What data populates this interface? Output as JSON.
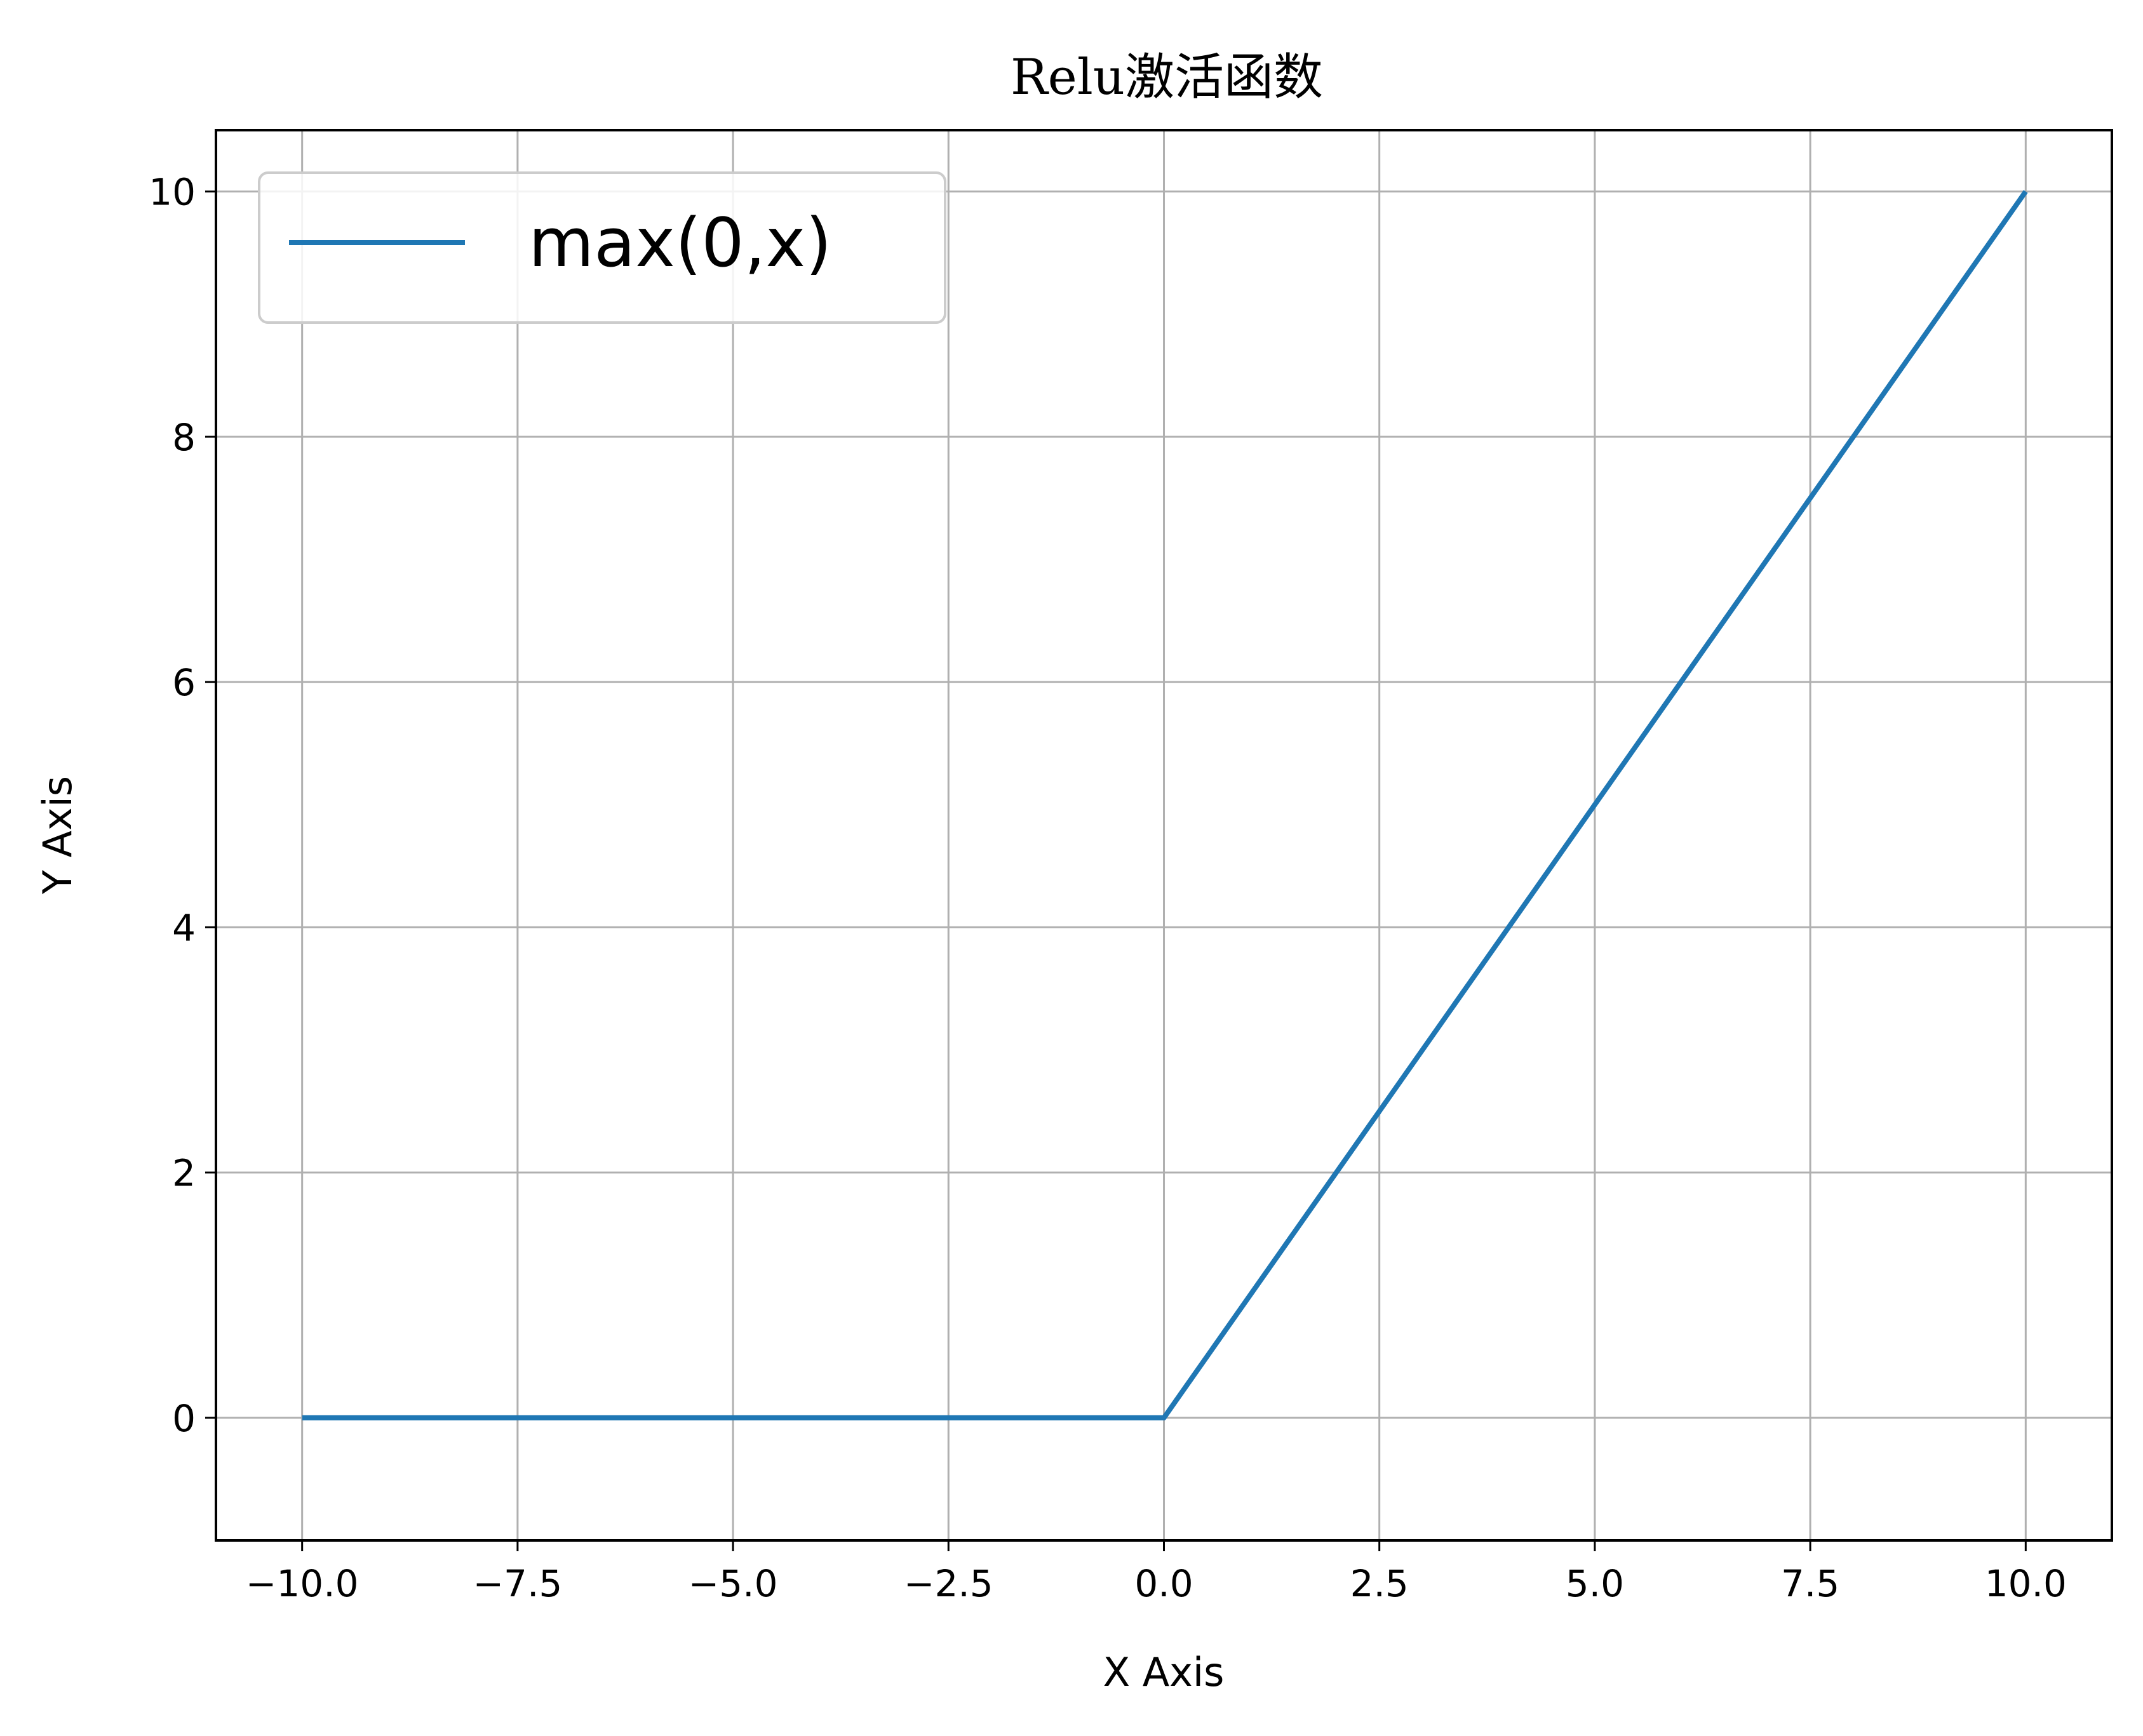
{
  "chart_data": {
    "type": "line",
    "title": "Relu激活函数",
    "xlabel": "X Axis",
    "ylabel": "Y Axis",
    "xlim": [
      -11,
      11
    ],
    "ylim": [
      -1,
      10.5
    ],
    "xticks": [
      -10.0,
      -7.5,
      -5.0,
      -2.5,
      0.0,
      2.5,
      5.0,
      7.5,
      10.0
    ],
    "xtick_labels": [
      "−10.0",
      "−7.5",
      "−5.0",
      "−2.5",
      "0.0",
      "2.5",
      "5.0",
      "7.5",
      "10.0"
    ],
    "yticks": [
      0,
      2,
      4,
      6,
      8,
      10
    ],
    "ytick_labels": [
      "0",
      "2",
      "4",
      "6",
      "8",
      "10"
    ],
    "grid": true,
    "legend_position": "upper-left",
    "series": [
      {
        "name": "max(0,x)",
        "color": "#1f77b4",
        "x": [
          -10,
          0,
          10
        ],
        "y": [
          0,
          0,
          10
        ]
      }
    ]
  }
}
